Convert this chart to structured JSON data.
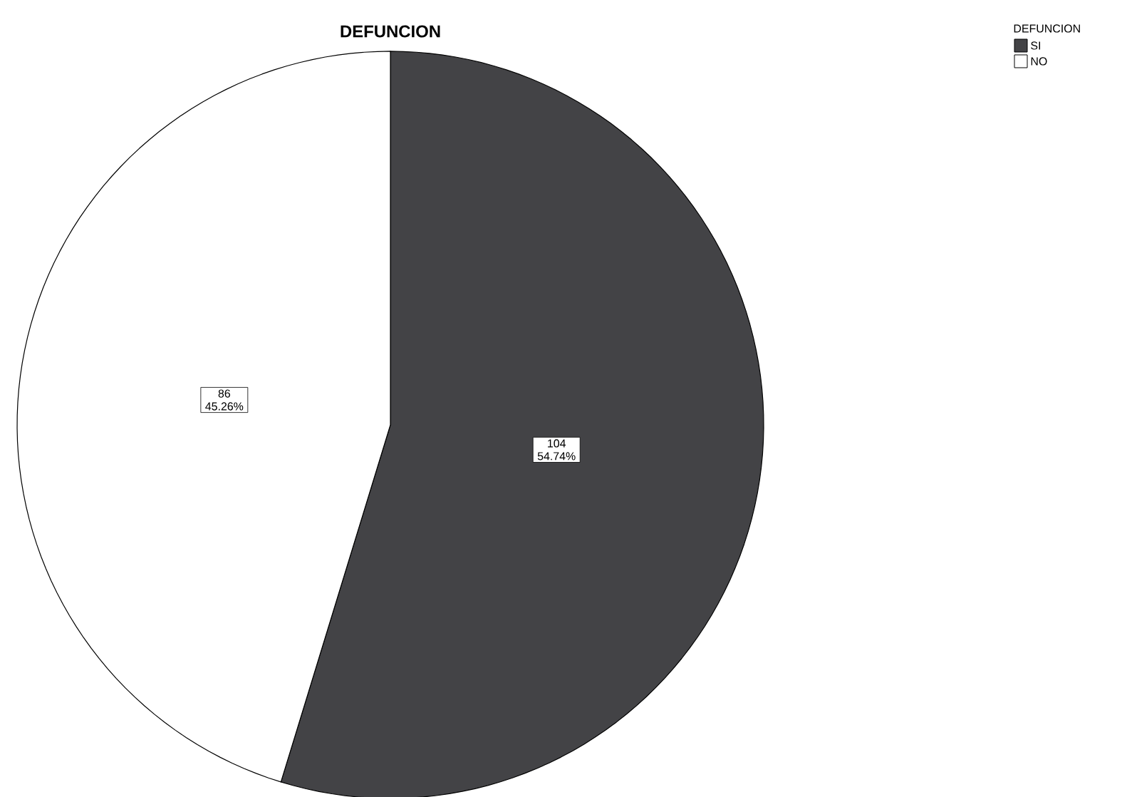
{
  "chart_data": {
    "type": "pie",
    "title": "DEFUNCION",
    "legend_title": "DEFUNCION",
    "legend": "top right",
    "categories": [
      "SI",
      "NO"
    ],
    "values": [
      104,
      86
    ],
    "colors": [
      "#434346",
      "#ffffff"
    ],
    "value_labels": [
      "104 54.74%",
      "86 45.26%"
    ]
  }
}
